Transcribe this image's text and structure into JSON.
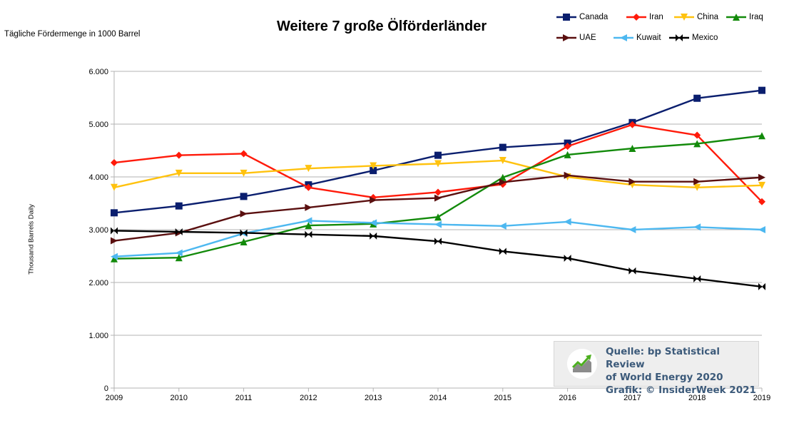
{
  "chart_data": {
    "type": "line",
    "title": "Weitere 7 große Ölförderländer",
    "subtitle": "Tägliche Fördermenge in 1000 Barrel",
    "ylabel": "Thousand Barrels Daily",
    "xlabel": "",
    "x": [
      2009,
      2010,
      2011,
      2012,
      2013,
      2014,
      2015,
      2016,
      2017,
      2018,
      2019
    ],
    "x_tick_labels": [
      "2009",
      "2010",
      "2011",
      "2012",
      "2013",
      "2014",
      "2015",
      "2016",
      "2017",
      "2018",
      "2019"
    ],
    "y_ticks": [
      0,
      1000,
      2000,
      3000,
      4000,
      5000,
      6000
    ],
    "y_tick_labels": [
      "0",
      "1.000",
      "2.000",
      "3.000",
      "4.000",
      "5.000",
      "6.000"
    ],
    "ylim": [
      0,
      6000
    ],
    "grid": "horizontal",
    "legend_position": "top-right",
    "series": [
      {
        "name": "Canada",
        "color": "#0a1e6e",
        "marker": "square",
        "values": [
          3320,
          3450,
          3630,
          3850,
          4120,
          4410,
          4560,
          4640,
          5030,
          5490,
          5640
        ]
      },
      {
        "name": "Iran",
        "color": "#ff1a0a",
        "marker": "diamond",
        "values": [
          4270,
          4410,
          4440,
          3800,
          3610,
          3710,
          3860,
          4580,
          4990,
          4790,
          3530
        ]
      },
      {
        "name": "China",
        "color": "#ffc20e",
        "marker": "triangle-down",
        "values": [
          3800,
          4070,
          4070,
          4160,
          4210,
          4250,
          4310,
          4000,
          3850,
          3800,
          3840
        ]
      },
      {
        "name": "Iraq",
        "color": "#128a0a",
        "marker": "triangle-up",
        "values": [
          2450,
          2470,
          2770,
          3080,
          3110,
          3240,
          3990,
          4420,
          4540,
          4630,
          4780
        ]
      },
      {
        "name": "UAE",
        "color": "#5a0f0f",
        "marker": "arrow-right",
        "values": [
          2790,
          2940,
          3300,
          3420,
          3560,
          3600,
          3900,
          4030,
          3910,
          3910,
          3990
        ]
      },
      {
        "name": "Kuwait",
        "color": "#4db8f0",
        "marker": "arrow-left",
        "values": [
          2490,
          2560,
          2930,
          3170,
          3130,
          3100,
          3070,
          3150,
          3000,
          3050,
          3000
        ]
      },
      {
        "name": "Mexico",
        "color": "#000000",
        "marker": "bowtie",
        "values": [
          2980,
          2960,
          2940,
          2910,
          2880,
          2780,
          2590,
          2460,
          2220,
          2070,
          1920
        ]
      }
    ]
  },
  "source": {
    "line1": "Quelle: bp Statistical Review",
    "line2": "of World Energy 2020",
    "line3": "Grafik: © InsiderWeek 2021",
    "logo_icon": "chart-trend-up-icon"
  }
}
